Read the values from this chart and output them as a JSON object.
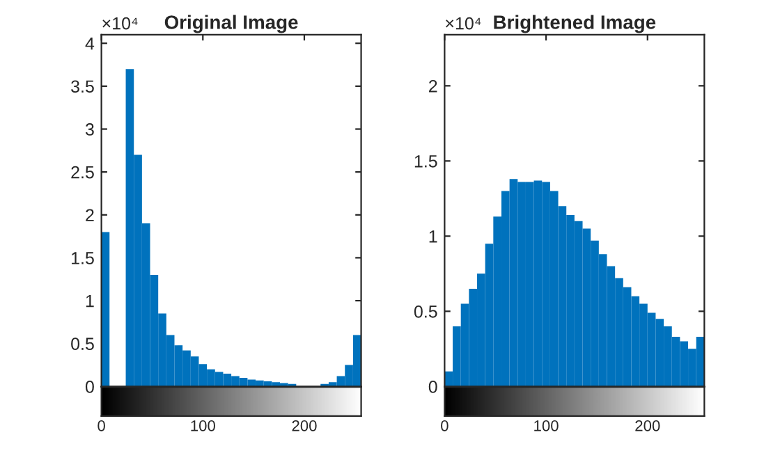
{
  "chart_data": [
    {
      "type": "histogram",
      "title": "Original Image",
      "color": "#0072bd",
      "bins": [
        0,
        8,
        16,
        24,
        32,
        40,
        48,
        56,
        64,
        72,
        80,
        88,
        96,
        104,
        112,
        120,
        128,
        136,
        144,
        152,
        160,
        168,
        176,
        184,
        192,
        200,
        208,
        216,
        224,
        232,
        240,
        248,
        256
      ],
      "values": [
        1.8,
        null,
        null,
        3.7,
        2.7,
        1.9,
        1.3,
        0.85,
        0.6,
        0.48,
        0.42,
        0.35,
        0.26,
        0.2,
        0.17,
        0.15,
        0.12,
        0.1,
        0.08,
        0.07,
        0.06,
        0.05,
        0.04,
        0.03,
        null,
        null,
        null,
        0.03,
        0.05,
        0.12,
        0.25,
        0.6
      ],
      "xlim": [
        0,
        256
      ],
      "xticks": [
        0,
        100,
        200
      ],
      "ylim": [
        0,
        4.1
      ],
      "yticks": [
        0,
        0.5,
        1,
        1.5,
        2,
        2.5,
        3,
        3.5,
        4
      ],
      "annotations": [
        "×10⁴"
      ]
    },
    {
      "type": "histogram",
      "title": "Brightened Image",
      "color": "#0072bd",
      "bins": [
        0,
        8,
        16,
        24,
        32,
        40,
        48,
        56,
        64,
        72,
        80,
        88,
        96,
        104,
        112,
        120,
        128,
        136,
        144,
        152,
        160,
        168,
        176,
        184,
        192,
        200,
        208,
        216,
        224,
        232,
        240,
        248,
        256
      ],
      "values": [
        0.1,
        0.4,
        0.55,
        0.65,
        0.75,
        0.95,
        1.13,
        1.3,
        1.38,
        1.36,
        1.36,
        1.37,
        1.36,
        1.3,
        1.2,
        1.14,
        1.1,
        1.05,
        0.97,
        0.88,
        0.8,
        0.72,
        0.66,
        0.6,
        0.55,
        0.49,
        0.45,
        0.4,
        0.33,
        0.3,
        0.25,
        0.33
      ],
      "xlim": [
        0,
        256
      ],
      "xticks": [
        0,
        100,
        200
      ],
      "ylim": [
        0,
        2.34
      ],
      "yticks": [
        0,
        0.5,
        1,
        1.5,
        2
      ],
      "annotations": [
        "×10⁴"
      ]
    }
  ]
}
